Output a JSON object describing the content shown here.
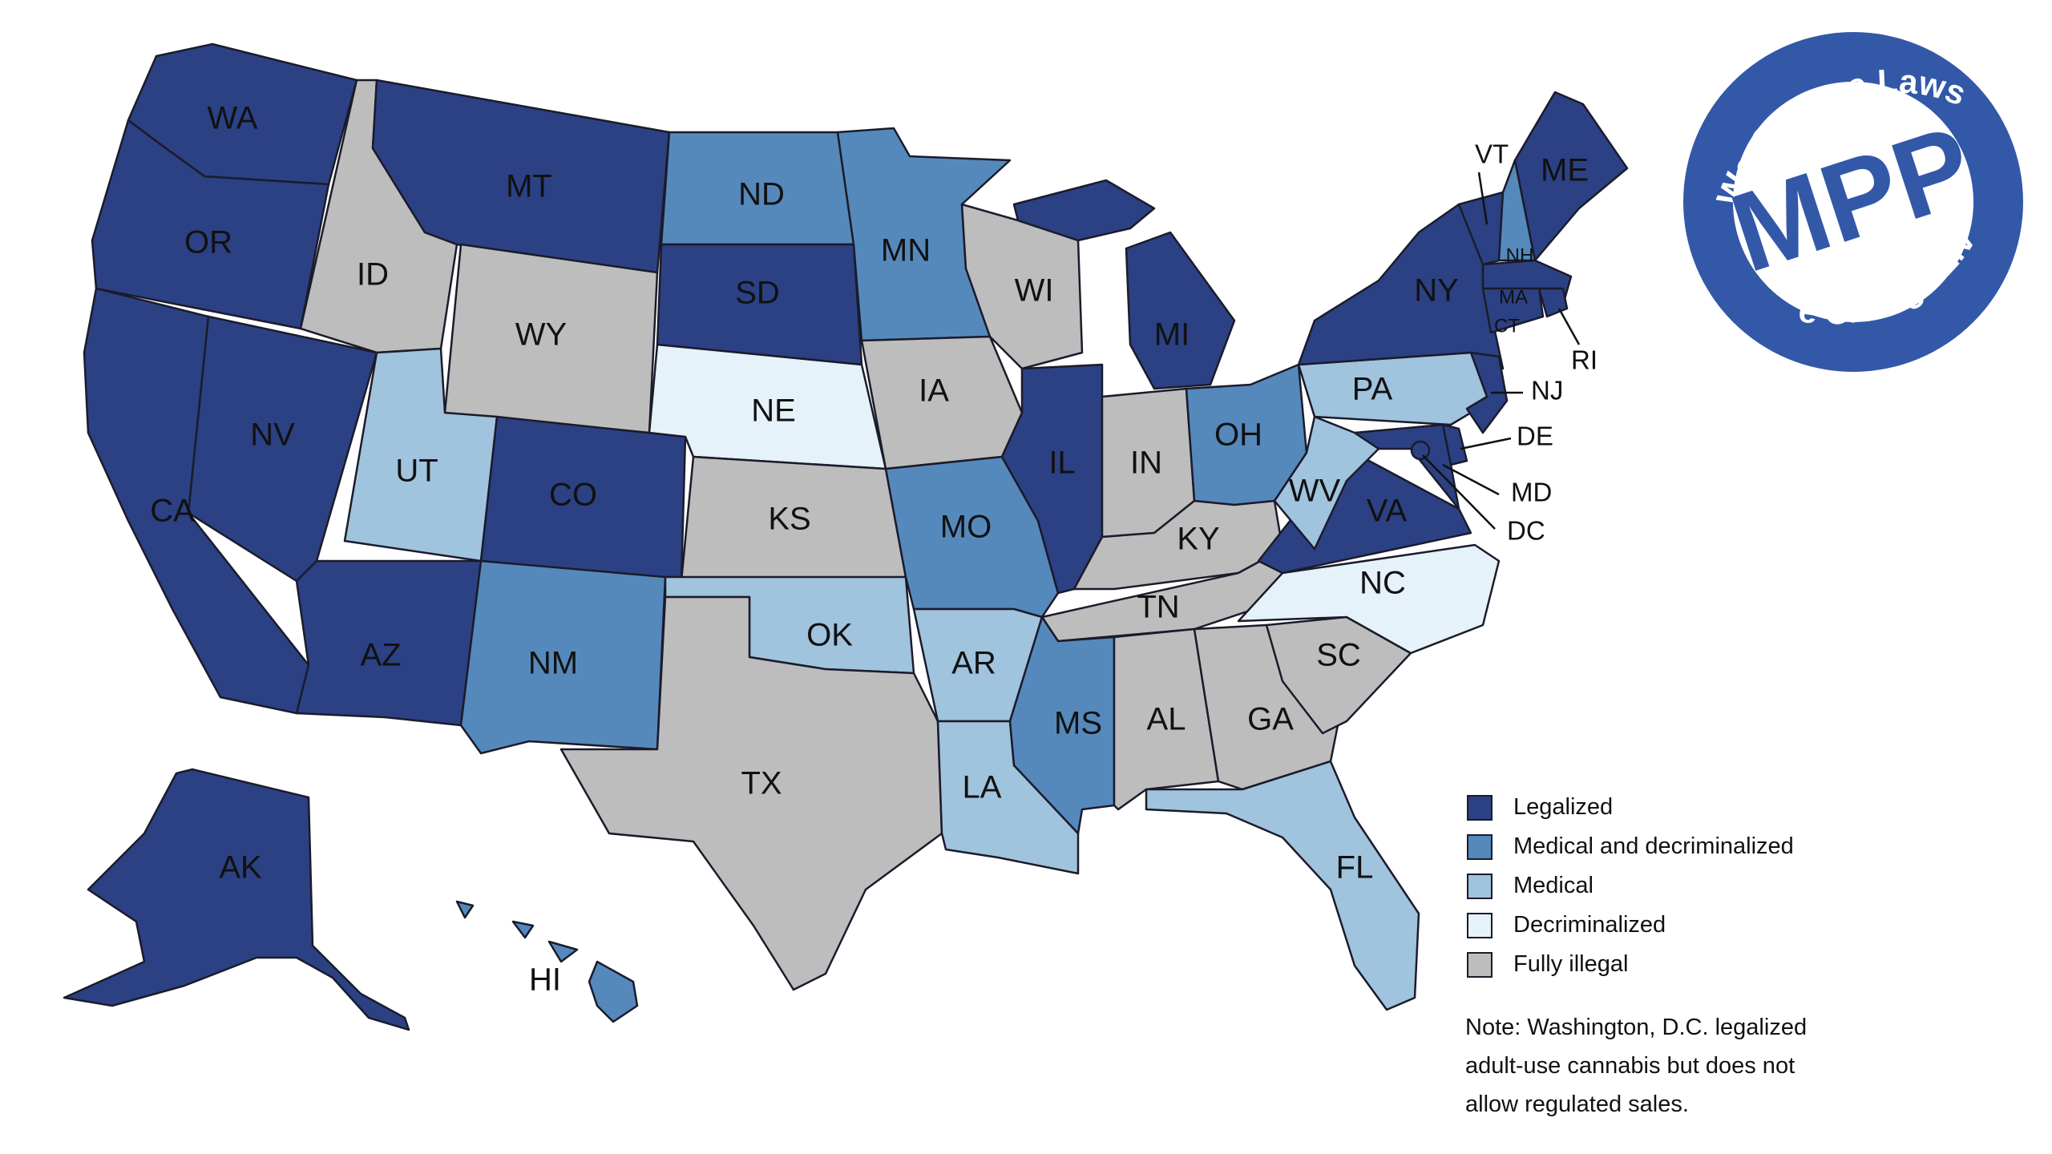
{
  "colors": {
    "legalized": "#2b4183",
    "medical_decrim": "#5589bc",
    "medical": "#a0c3de",
    "decrim": "#e5f2f9",
    "illegal": "#bdbdbd",
    "logo_blue": "#3358a8"
  },
  "logo": {
    "top_text": "We Change Laws",
    "center_text": "MPP",
    "bottom_text": "We Change Lives"
  },
  "legend": {
    "items": [
      {
        "key": "legalized",
        "label": "Legalized"
      },
      {
        "key": "medical_decrim",
        "label": "Medical and decriminalized"
      },
      {
        "key": "medical",
        "label": "Medical"
      },
      {
        "key": "decrim",
        "label": "Decriminalized"
      },
      {
        "key": "illegal",
        "label": "Fully illegal"
      }
    ]
  },
  "note": "Note: Washington, D.C. legalized\nadult-use cannabis but does not\nallow regulated sales.",
  "states": [
    {
      "id": "WA",
      "label": "WA",
      "status": "legalized"
    },
    {
      "id": "OR",
      "label": "OR",
      "status": "legalized"
    },
    {
      "id": "CA",
      "label": "CA",
      "status": "legalized"
    },
    {
      "id": "NV",
      "label": "NV",
      "status": "legalized"
    },
    {
      "id": "ID",
      "label": "ID",
      "status": "illegal"
    },
    {
      "id": "MT",
      "label": "MT",
      "status": "legalized"
    },
    {
      "id": "WY",
      "label": "WY",
      "status": "illegal"
    },
    {
      "id": "UT",
      "label": "UT",
      "status": "medical"
    },
    {
      "id": "AZ",
      "label": "AZ",
      "status": "legalized"
    },
    {
      "id": "CO",
      "label": "CO",
      "status": "legalized"
    },
    {
      "id": "NM",
      "label": "NM",
      "status": "medical_decrim"
    },
    {
      "id": "ND",
      "label": "ND",
      "status": "medical_decrim"
    },
    {
      "id": "SD",
      "label": "SD",
      "status": "legalized"
    },
    {
      "id": "NE",
      "label": "NE",
      "status": "decrim"
    },
    {
      "id": "KS",
      "label": "KS",
      "status": "illegal"
    },
    {
      "id": "OK",
      "label": "OK",
      "status": "medical"
    },
    {
      "id": "TX",
      "label": "TX",
      "status": "illegal"
    },
    {
      "id": "MN",
      "label": "MN",
      "status": "medical_decrim"
    },
    {
      "id": "IA",
      "label": "IA",
      "status": "illegal"
    },
    {
      "id": "MO",
      "label": "MO",
      "status": "medical_decrim"
    },
    {
      "id": "AR",
      "label": "AR",
      "status": "medical"
    },
    {
      "id": "LA",
      "label": "LA",
      "status": "medical"
    },
    {
      "id": "WI",
      "label": "WI",
      "status": "illegal"
    },
    {
      "id": "IL",
      "label": "IL",
      "status": "legalized"
    },
    {
      "id": "MI",
      "label": "MI",
      "status": "legalized"
    },
    {
      "id": "IN",
      "label": "IN",
      "status": "illegal"
    },
    {
      "id": "OH",
      "label": "OH",
      "status": "medical_decrim"
    },
    {
      "id": "KY",
      "label": "KY",
      "status": "illegal"
    },
    {
      "id": "TN",
      "label": "TN",
      "status": "illegal"
    },
    {
      "id": "MS",
      "label": "MS",
      "status": "medical_decrim"
    },
    {
      "id": "AL",
      "label": "AL",
      "status": "illegal"
    },
    {
      "id": "GA",
      "label": "GA",
      "status": "illegal"
    },
    {
      "id": "FL",
      "label": "FL",
      "status": "medical"
    },
    {
      "id": "SC",
      "label": "SC",
      "status": "illegal"
    },
    {
      "id": "NC",
      "label": "NC",
      "status": "decrim"
    },
    {
      "id": "VA",
      "label": "VA",
      "status": "legalized"
    },
    {
      "id": "WV",
      "label": "WV",
      "status": "medical"
    },
    {
      "id": "PA",
      "label": "PA",
      "status": "medical"
    },
    {
      "id": "NY",
      "label": "NY",
      "status": "legalized"
    },
    {
      "id": "VT",
      "label": "VT",
      "status": "legalized"
    },
    {
      "id": "NH",
      "label": "NH",
      "status": "medical_decrim"
    },
    {
      "id": "ME",
      "label": "ME",
      "status": "legalized"
    },
    {
      "id": "MA",
      "label": "MA",
      "status": "legalized"
    },
    {
      "id": "RI",
      "label": "RI",
      "status": "legalized"
    },
    {
      "id": "CT",
      "label": "CT",
      "status": "legalized"
    },
    {
      "id": "NJ",
      "label": "NJ",
      "status": "legalized"
    },
    {
      "id": "DE",
      "label": "DE",
      "status": "legalized"
    },
    {
      "id": "MD",
      "label": "MD",
      "status": "legalized"
    },
    {
      "id": "DC",
      "label": "DC",
      "status": "legalized"
    },
    {
      "id": "AK",
      "label": "AK",
      "status": "legalized"
    },
    {
      "id": "HI",
      "label": "HI",
      "status": "medical_decrim"
    }
  ]
}
